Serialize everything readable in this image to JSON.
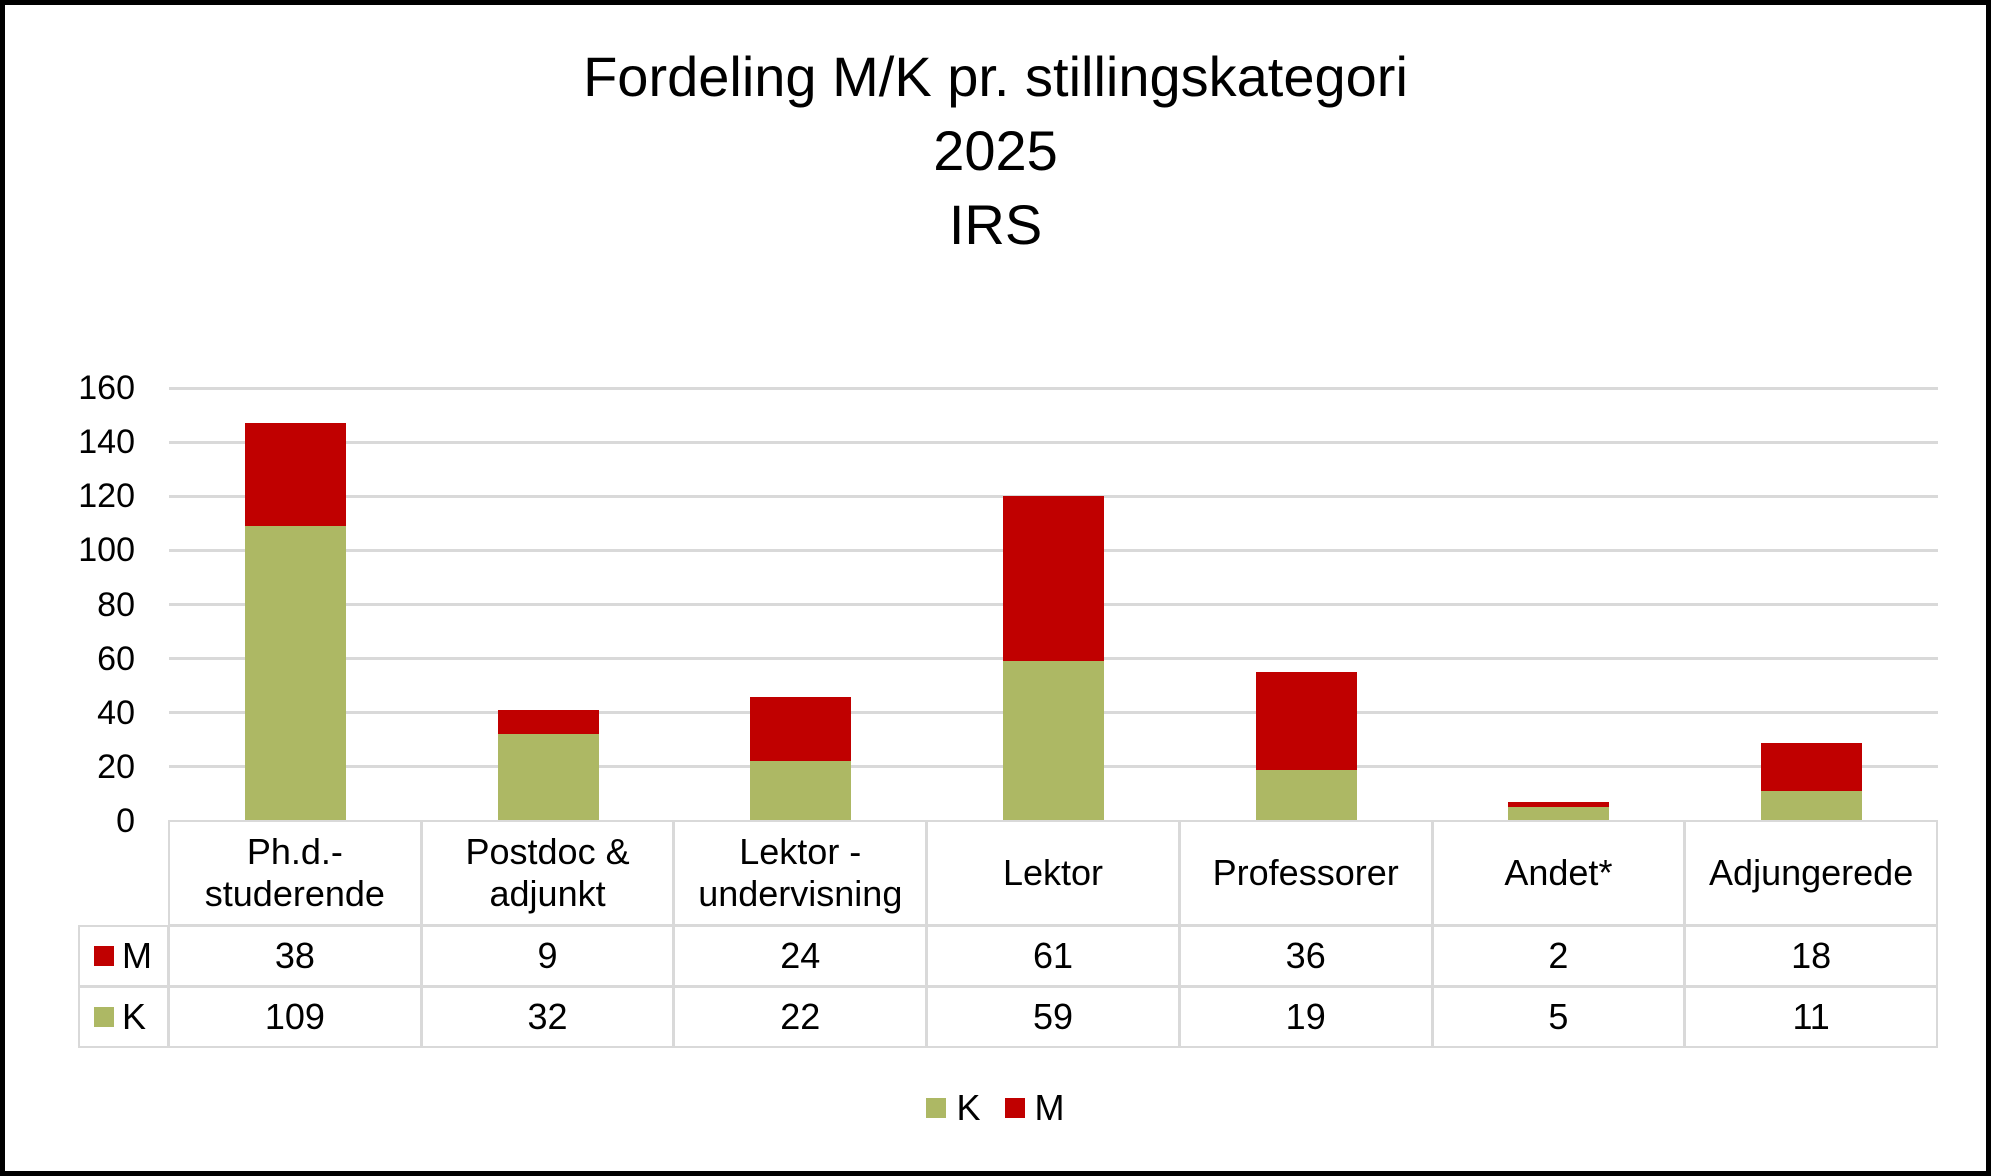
{
  "chart_data": {
    "type": "bar",
    "stacked": true,
    "title": "Fordeling M/K pr. stillingskategori",
    "subtitle_lines": [
      "2025",
      "IRS"
    ],
    "title_lines": [
      "Fordeling M/K pr. stillingskategori",
      "2025",
      "IRS"
    ],
    "xlabel": "",
    "ylabel": "",
    "ylim": [
      0,
      160
    ],
    "yticks": [
      0,
      20,
      40,
      60,
      80,
      100,
      120,
      140,
      160
    ],
    "grid": true,
    "legend_position": "bottom",
    "data_table": true,
    "categories": [
      "Ph.d.-studerende",
      "Postdoc & adjunkt",
      "Lektor - undervisning",
      "Lektor",
      "Professorer",
      "Andet*",
      "Adjungerede"
    ],
    "category_lines": [
      [
        "Ph.d.-",
        "studerende"
      ],
      [
        "Postdoc &",
        "adjunkt"
      ],
      [
        "Lektor -",
        "undervisning"
      ],
      [
        "Lektor"
      ],
      [
        "Professorer"
      ],
      [
        "Andet*"
      ],
      [
        "Adjungerede"
      ]
    ],
    "series": [
      {
        "name": "K",
        "color": "#adb864",
        "values": [
          109,
          32,
          22,
          59,
          19,
          5,
          11
        ]
      },
      {
        "name": "M",
        "color": "#c00000",
        "values": [
          38,
          9,
          24,
          61,
          36,
          2,
          18
        ]
      }
    ],
    "table_rows": [
      {
        "name": "M",
        "color": "#c00000",
        "values": [
          38,
          9,
          24,
          61,
          36,
          2,
          18
        ]
      },
      {
        "name": "K",
        "color": "#adb864",
        "values": [
          109,
          32,
          22,
          59,
          19,
          5,
          11
        ]
      }
    ],
    "legend": [
      {
        "name": "K",
        "color": "#adb864"
      },
      {
        "name": "M",
        "color": "#c00000"
      }
    ]
  }
}
